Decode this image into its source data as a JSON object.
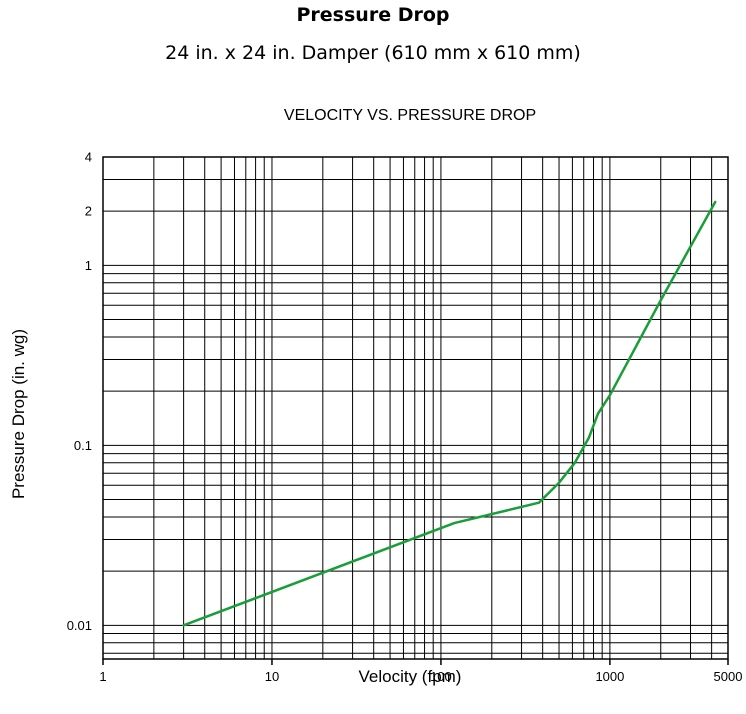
{
  "header": {
    "title": "Pressure Drop",
    "subtitle": "24 in. x 24 in. Damper (610 mm x 610 mm)"
  },
  "chart_data": {
    "type": "line",
    "title": "VELOCITY VS. PRESSURE DROP",
    "xlabel": "Velocity (fpm)",
    "ylabel": "Pressure Drop (in. wg)",
    "xscale": "log",
    "yscale": "log",
    "xlim": [
      1,
      5000
    ],
    "ylim": [
      0.0065,
      4
    ],
    "grid": true,
    "x_tick_labels": [
      {
        "value": 1,
        "label": "1"
      },
      {
        "value": 10,
        "label": "10"
      },
      {
        "value": 100,
        "label": "100"
      },
      {
        "value": 1000,
        "label": "1000"
      },
      {
        "value": 5000,
        "label": "5000"
      }
    ],
    "y_tick_labels": [
      {
        "value": 0.01,
        "label": "0.01"
      },
      {
        "value": 0.1,
        "label": "0.1"
      },
      {
        "value": 1,
        "label": "1"
      },
      {
        "value": 2,
        "label": "2"
      },
      {
        "value": 4,
        "label": "4"
      }
    ],
    "x_grid": [
      2,
      3,
      4,
      5,
      6,
      7,
      8,
      9,
      10,
      20,
      30,
      40,
      50,
      60,
      70,
      80,
      90,
      100,
      200,
      300,
      400,
      500,
      600,
      700,
      800,
      900,
      1000,
      2000,
      3000,
      4000
    ],
    "y_grid": [
      0.007,
      0.008,
      0.009,
      0.01,
      0.02,
      0.03,
      0.04,
      0.05,
      0.06,
      0.07,
      0.08,
      0.09,
      0.1,
      0.2,
      0.3,
      0.4,
      0.5,
      0.6,
      0.7,
      0.8,
      0.9,
      1,
      2,
      3
    ],
    "line_color": "#1a9e3a",
    "series": [
      {
        "x": [
          3,
          120,
          380,
          500,
          620,
          750,
          850,
          1000,
          2000,
          4200
        ],
        "y": [
          0.01,
          0.037,
          0.048,
          0.062,
          0.08,
          0.11,
          0.15,
          0.19,
          0.64,
          2.25
        ]
      }
    ]
  }
}
